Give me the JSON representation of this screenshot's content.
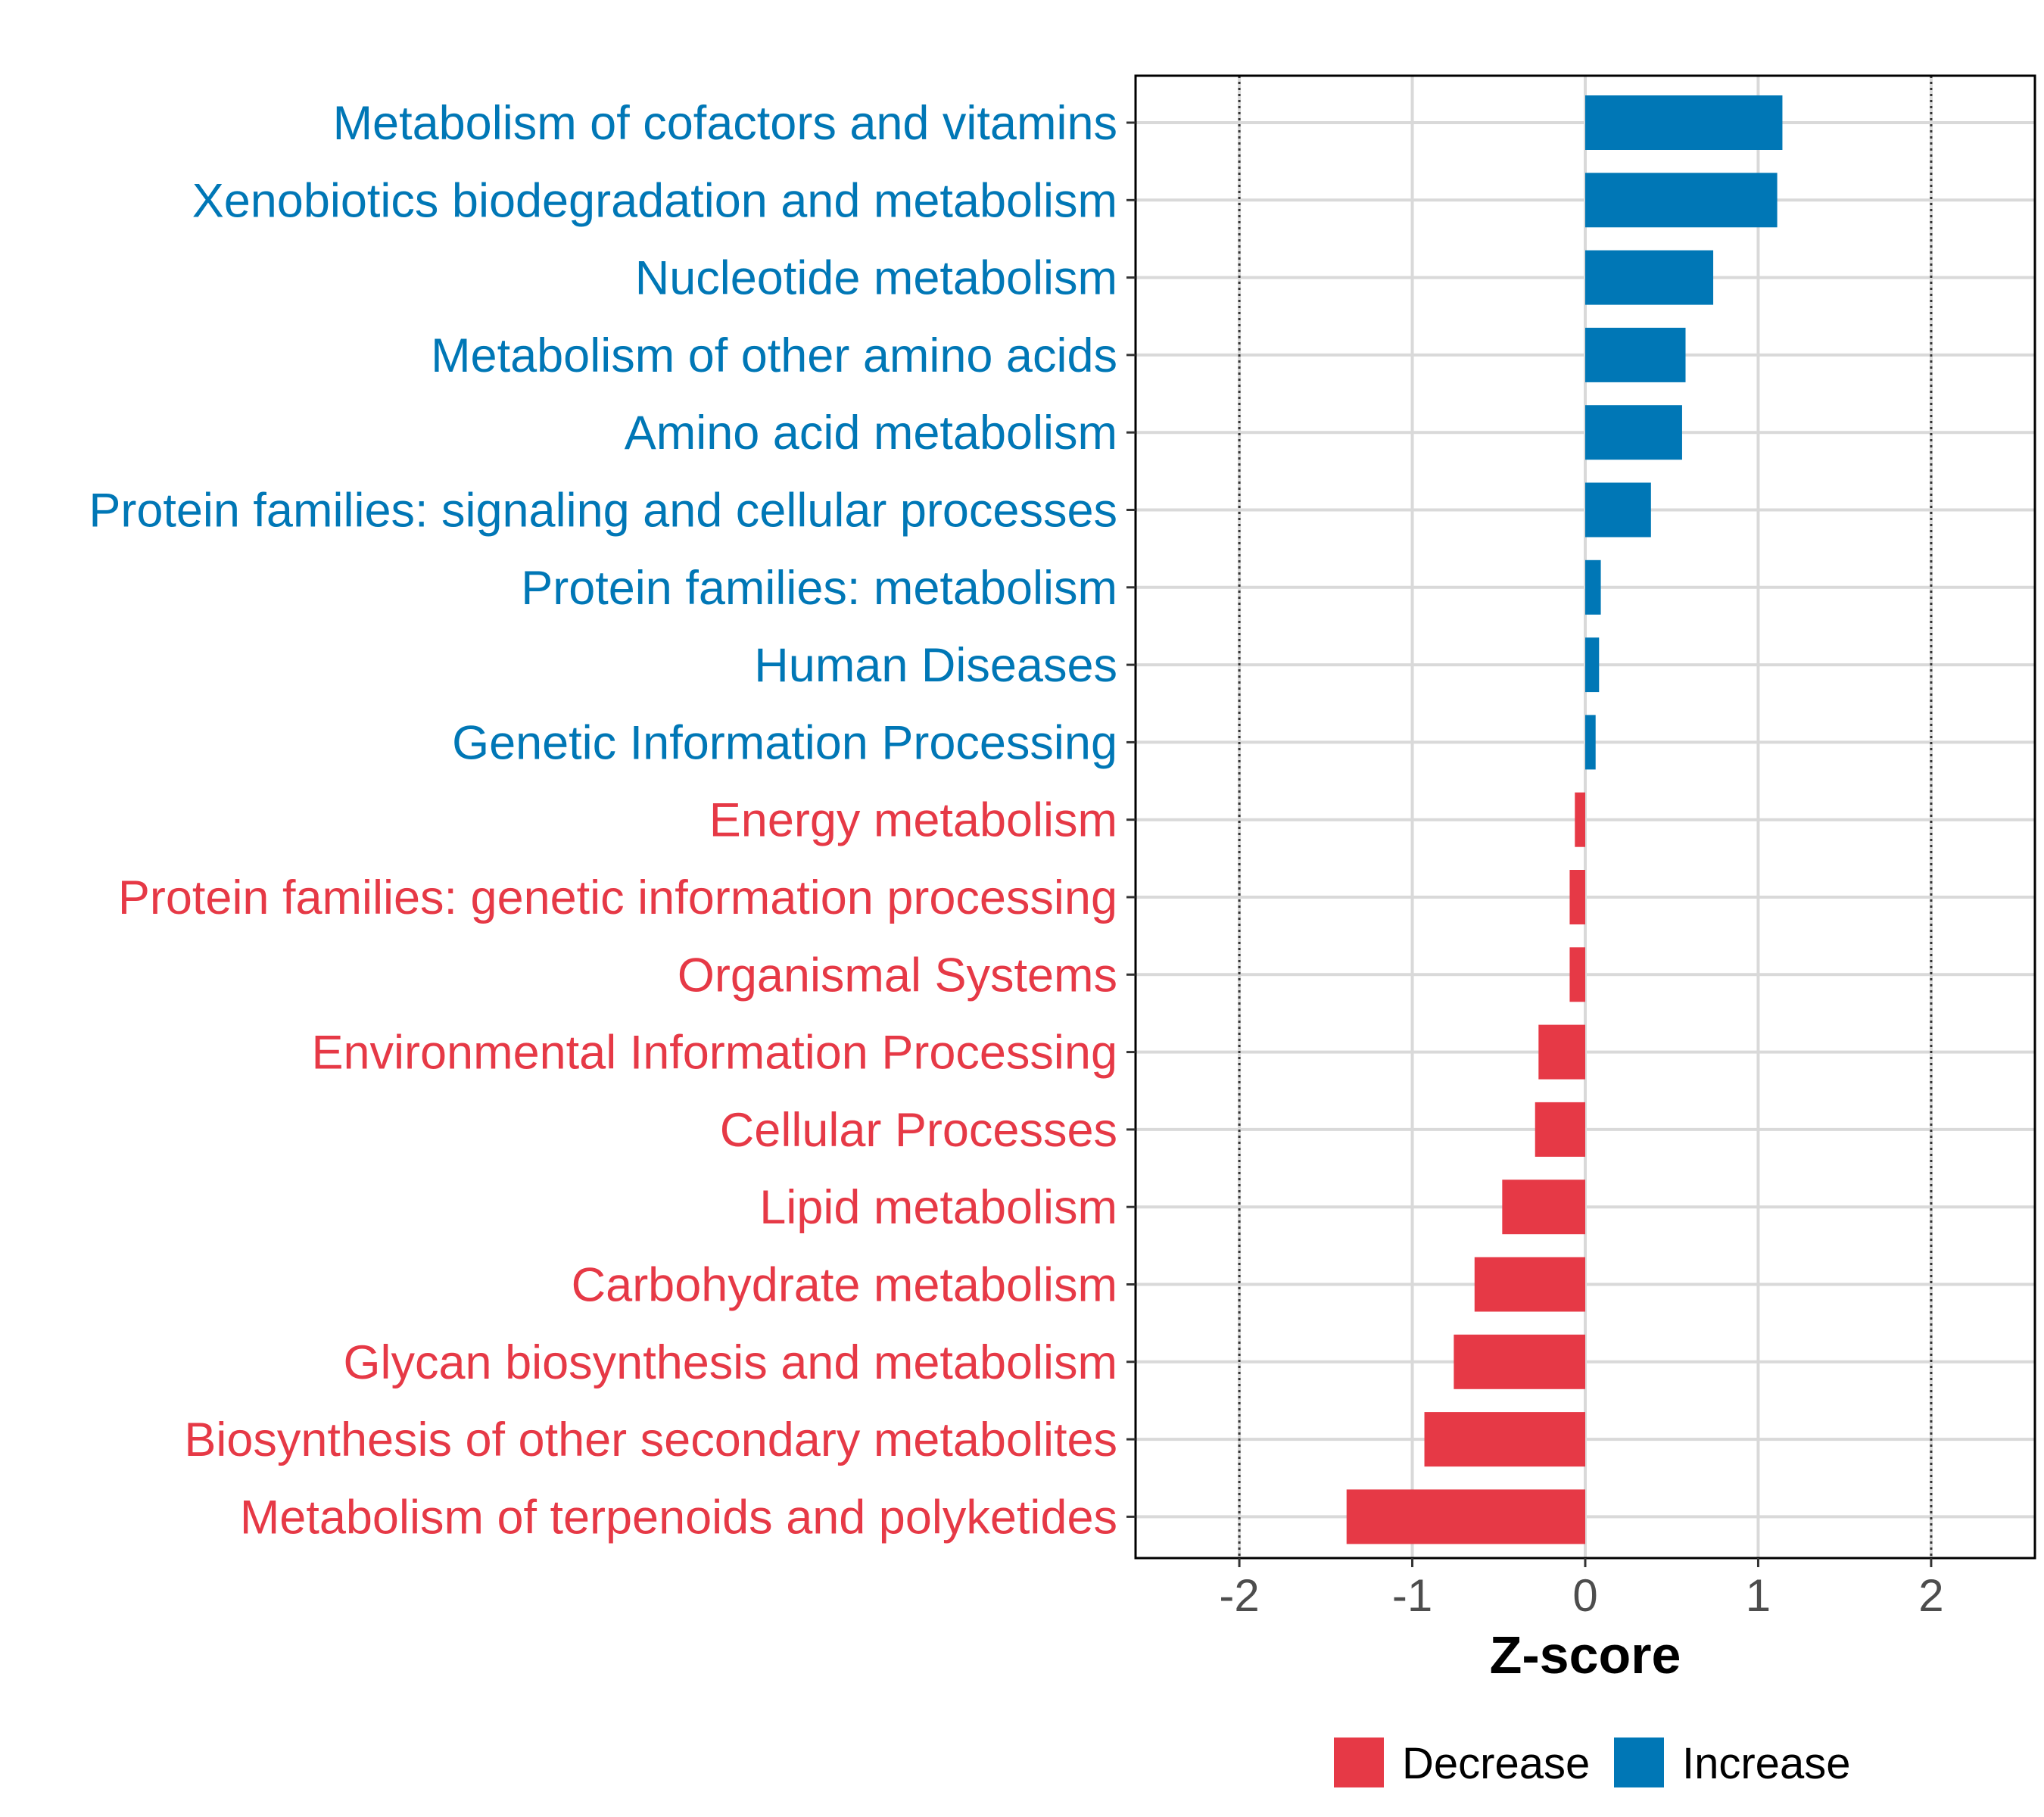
{
  "chart_data": {
    "type": "bar",
    "orientation": "horizontal",
    "title": "",
    "xlabel": "Z-score",
    "ylabel": "",
    "xlim": [
      -2.6,
      2.6
    ],
    "xticks": [
      -2,
      -1,
      0,
      1,
      2
    ],
    "xtick_labels": [
      "-2",
      "-1",
      "0",
      "1",
      "2"
    ],
    "reference_lines": [
      -2,
      2
    ],
    "grid": true,
    "legend_position": "bottom",
    "colors": {
      "Decrease": "#e63946",
      "Increase": "#0077b6"
    },
    "legend": [
      {
        "name": "Decrease"
      },
      {
        "name": "Increase"
      }
    ],
    "categories": [
      "Metabolism of cofactors and vitamins",
      "Xenobiotics biodegradation and metabolism",
      "Nucleotide metabolism",
      "Metabolism of other amino acids",
      "Amino acid metabolism",
      "Protein families: signaling and cellular processes",
      "Protein families: metabolism",
      "Human Diseases",
      "Genetic Information Processing",
      "Energy metabolism",
      "Protein families: genetic information processing",
      "Organismal Systems",
      "Environmental Information Processing",
      "Cellular Processes",
      "Lipid metabolism",
      "Carbohydrate metabolism",
      "Glycan biosynthesis and metabolism",
      "Biosynthesis of other secondary metabolites",
      "Metabolism of terpenoids and polyketides"
    ],
    "values": [
      1.14,
      1.11,
      0.74,
      0.58,
      0.56,
      0.38,
      0.09,
      0.08,
      0.06,
      -0.06,
      -0.09,
      -0.09,
      -0.27,
      -0.29,
      -0.48,
      -0.64,
      -0.76,
      -0.93,
      -1.38
    ],
    "groups": [
      "Increase",
      "Increase",
      "Increase",
      "Increase",
      "Increase",
      "Increase",
      "Increase",
      "Increase",
      "Increase",
      "Decrease",
      "Decrease",
      "Decrease",
      "Decrease",
      "Decrease",
      "Decrease",
      "Decrease",
      "Decrease",
      "Decrease",
      "Decrease"
    ]
  }
}
